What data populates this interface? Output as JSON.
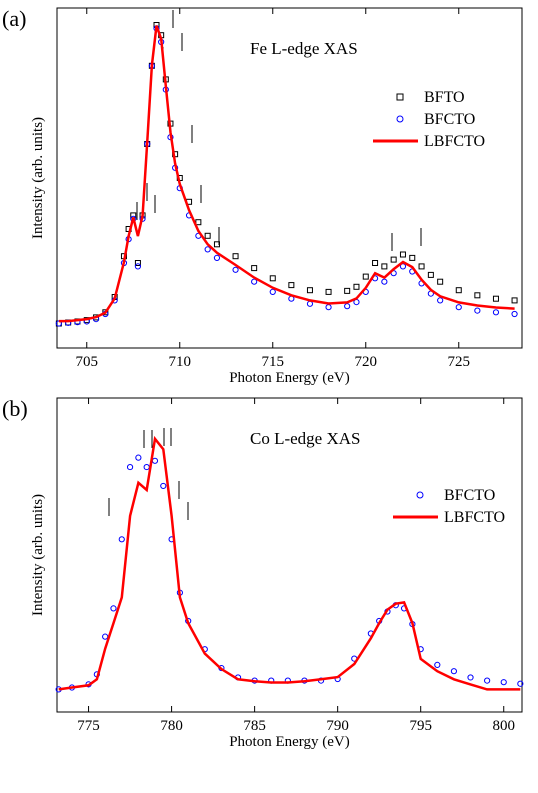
{
  "chart_data": [
    {
      "type": "line",
      "label": "(a)",
      "annotation": "Fe L-edge XAS",
      "xlabel": "Photon Energy (eV)",
      "ylabel": "Intensity (arb. units)",
      "xlim": [
        703.4,
        728.4
      ],
      "xticks": [
        705,
        710,
        715,
        720,
        725
      ],
      "ylim": [
        0,
        1
      ],
      "x": [
        703.5,
        704,
        704.5,
        705,
        705.5,
        706,
        706.5,
        707,
        707.25,
        707.5,
        707.75,
        708,
        708.25,
        708.5,
        708.75,
        709,
        709.25,
        709.5,
        709.75,
        710,
        710.5,
        711,
        711.5,
        712,
        713,
        714,
        715,
        716,
        717,
        718,
        719,
        719.5,
        720,
        720.5,
        721,
        721.5,
        722,
        722.5,
        723,
        723.5,
        724,
        725,
        726,
        727,
        728
      ],
      "series": [
        {
          "name": "BFTO",
          "color": "#000000",
          "marker": "square",
          "values": [
            0.072,
            0.075,
            0.078,
            0.082,
            0.09,
            0.105,
            0.15,
            0.27,
            0.35,
            0.39,
            0.25,
            0.39,
            0.6,
            0.83,
            0.95,
            0.92,
            0.79,
            0.66,
            0.57,
            0.5,
            0.43,
            0.37,
            0.33,
            0.305,
            0.27,
            0.235,
            0.205,
            0.185,
            0.17,
            0.165,
            0.168,
            0.18,
            0.21,
            0.25,
            0.24,
            0.26,
            0.275,
            0.265,
            0.24,
            0.215,
            0.195,
            0.17,
            0.155,
            0.145,
            0.14
          ]
        },
        {
          "name": "BFCTO",
          "color": "#0000ff",
          "marker": "circle",
          "values": [
            0.072,
            0.074,
            0.076,
            0.078,
            0.085,
            0.1,
            0.14,
            0.25,
            0.32,
            0.38,
            0.24,
            0.38,
            0.6,
            0.83,
            0.94,
            0.9,
            0.76,
            0.62,
            0.53,
            0.47,
            0.39,
            0.33,
            0.29,
            0.265,
            0.23,
            0.195,
            0.165,
            0.145,
            0.13,
            0.12,
            0.123,
            0.135,
            0.165,
            0.205,
            0.195,
            0.22,
            0.24,
            0.225,
            0.19,
            0.16,
            0.14,
            0.12,
            0.11,
            0.105,
            0.1
          ]
        },
        {
          "name": "LBFCTO",
          "color": "#ff0000",
          "values": [
            0.079,
            0.079,
            0.082,
            0.085,
            0.091,
            0.104,
            0.146,
            0.253,
            0.329,
            0.384,
            0.329,
            0.39,
            0.604,
            0.832,
            0.948,
            0.909,
            0.771,
            0.634,
            0.543,
            0.482,
            0.405,
            0.344,
            0.305,
            0.28,
            0.244,
            0.207,
            0.177,
            0.155,
            0.14,
            0.131,
            0.134,
            0.146,
            0.177,
            0.22,
            0.207,
            0.232,
            0.253,
            0.238,
            0.201,
            0.171,
            0.152,
            0.134,
            0.125,
            0.119,
            0.116
          ]
        }
      ]
    },
    {
      "type": "line",
      "label": "(b)",
      "annotation": "Co L-edge XAS",
      "xlabel": "Photon Energy (eV)",
      "ylabel": "Intensity (arb. units)",
      "xlim": [
        773.1,
        801.1
      ],
      "xticks": [
        775,
        780,
        785,
        790,
        795,
        800
      ],
      "ylim": [
        0,
        1
      ],
      "x": [
        773.2,
        774,
        775,
        775.5,
        776,
        776.5,
        777,
        777.5,
        778,
        778.5,
        779,
        779.5,
        780,
        780.5,
        781,
        782,
        783,
        784,
        785,
        786,
        787,
        788,
        789,
        790,
        791,
        792,
        792.5,
        793,
        793.5,
        794,
        794.5,
        795,
        796,
        797,
        798,
        799,
        800,
        801
      ],
      "series": [
        {
          "name": "BFCTO",
          "color": "#0000ff",
          "marker": "circle",
          "values": [
            0.072,
            0.078,
            0.088,
            0.12,
            0.24,
            0.33,
            0.55,
            0.78,
            0.81,
            0.78,
            0.8,
            0.72,
            0.55,
            0.38,
            0.29,
            0.2,
            0.14,
            0.11,
            0.1,
            0.1,
            0.1,
            0.1,
            0.1,
            0.105,
            0.17,
            0.25,
            0.29,
            0.32,
            0.34,
            0.33,
            0.28,
            0.2,
            0.15,
            0.13,
            0.11,
            0.1,
            0.095,
            0.09
          ]
        },
        {
          "name": "LBFCTO",
          "color": "#ff0000",
          "values": [
            0.072,
            0.078,
            0.085,
            0.104,
            0.202,
            0.283,
            0.365,
            0.625,
            0.73,
            0.707,
            0.87,
            0.837,
            0.625,
            0.365,
            0.283,
            0.186,
            0.137,
            0.104,
            0.098,
            0.094,
            0.094,
            0.098,
            0.104,
            0.111,
            0.153,
            0.235,
            0.283,
            0.326,
            0.345,
            0.349,
            0.283,
            0.169,
            0.13,
            0.104,
            0.088,
            0.072,
            0.072,
            0.072
          ]
        }
      ]
    }
  ]
}
